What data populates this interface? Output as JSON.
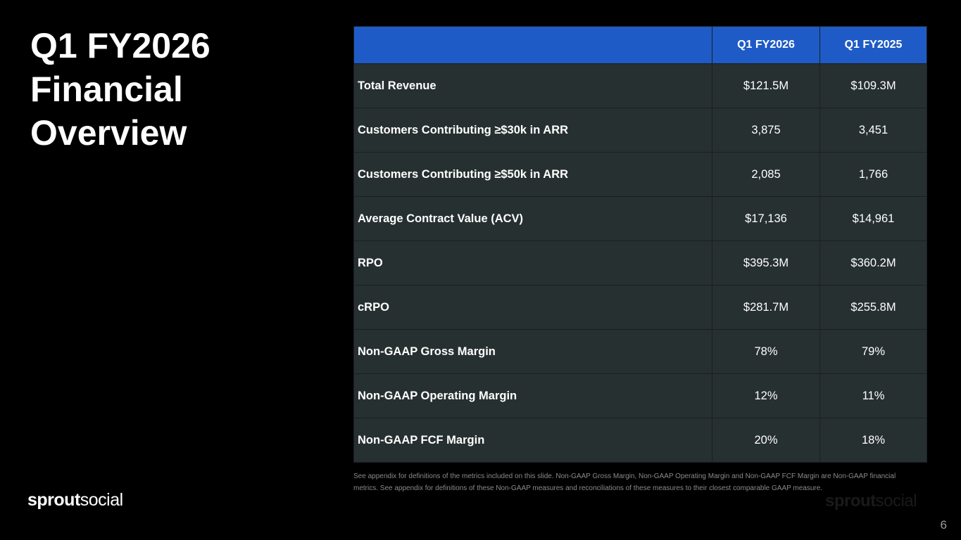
{
  "title": "Q1 FY2026 Financial Overview",
  "table": {
    "header": [
      "",
      "Q1 FY2026",
      "Q1 FY2025"
    ],
    "rows": [
      {
        "label": "Total Revenue",
        "fy2026": "$121.5M",
        "fy2025": "$109.3M"
      },
      {
        "label": "Customers Contributing ≥$30k in ARR",
        "fy2026": "3,875",
        "fy2025": "3,451"
      },
      {
        "label": "Customers Contributing ≥$50k in ARR",
        "fy2026": "2,085",
        "fy2025": "1,766"
      },
      {
        "label": "Average Contract Value (ACV)",
        "fy2026": "$17,136",
        "fy2025": "$14,961"
      },
      {
        "label": "RPO",
        "fy2026": "$395.3M",
        "fy2025": "$360.2M"
      },
      {
        "label": "cRPO",
        "fy2026": "$281.7M",
        "fy2025": "$255.8M"
      },
      {
        "label": "Non-GAAP Gross Margin",
        "fy2026": "78%",
        "fy2025": "79%"
      },
      {
        "label": "Non-GAAP Operating Margin",
        "fy2026": "12%",
        "fy2025": "11%"
      },
      {
        "label": "Non-GAAP FCF Margin",
        "fy2026": "20%",
        "fy2025": "18%"
      }
    ]
  },
  "footnote": "See appendix for definitions of the metrics included on this slide. Non-GAAP Gross Margin, Non-GAAP Operating Margin and Non-GAAP FCF Margin are Non-GAAP financial metrics. See appendix for definitions of these Non-GAAP measures and reconciliations of these measures to their closest comparable GAAP measure.",
  "brand": {
    "part1": "sprout",
    "part2": "social"
  },
  "page_number": "6",
  "colors": {
    "header_blue": "#1f5bc6",
    "row_bg": "#273030",
    "background": "#000000"
  }
}
